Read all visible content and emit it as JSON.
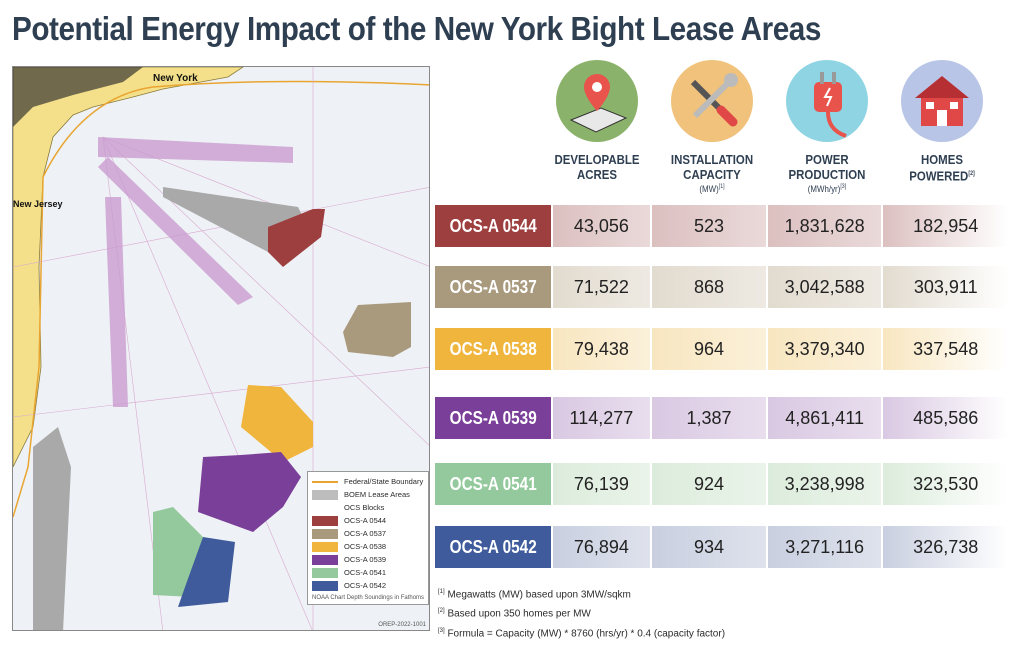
{
  "title": "Potential Energy Impact of the New York Bight Lease Areas",
  "map": {
    "labels": {
      "new_york": "New York",
      "new_jersey": "New Jersey"
    },
    "legend": {
      "boundary": "Federal/State Boundary",
      "boem": "BOEM Lease Areas",
      "blocks_title": "OCS Blocks",
      "items": [
        {
          "label": "OCS-A 0544",
          "color": "#9e3f3f"
        },
        {
          "label": "OCS-A 0537",
          "color": "#a99a7e"
        },
        {
          "label": "OCS-A 0538",
          "color": "#f0b53c"
        },
        {
          "label": "OCS-A 0539",
          "color": "#7a3f98"
        },
        {
          "label": "OCS-A 0541",
          "color": "#93c99c"
        },
        {
          "label": "OCS-A 0542",
          "color": "#3f5b9c"
        }
      ],
      "note": "NOAA Chart Depth Soundings in Fathoms",
      "code": "OREP-2022-1001"
    }
  },
  "headers": [
    {
      "title": "DEVELOPABLE ACRES",
      "sub": "",
      "icon": "map-pin-icon"
    },
    {
      "title": "INSTALLATION CAPACITY",
      "sub": "(MW)",
      "sup": "[1]",
      "icon": "tools-icon"
    },
    {
      "title": "POWER PRODUCTION",
      "sub": "(MWh/yr)",
      "sup": "[3]",
      "icon": "power-plug-icon"
    },
    {
      "title": "HOMES POWERED",
      "sub": "",
      "sup": "[2]",
      "icon": "house-icon"
    }
  ],
  "rows": [
    {
      "name": "OCS-A 0544",
      "acres": "43,056",
      "capacity": "523",
      "production": "1,831,628",
      "homes": "182,954",
      "color": "#9e3f3f",
      "tint": "#dcc0c0"
    },
    {
      "name": "OCS-A 0537",
      "acres": "71,522",
      "capacity": "868",
      "production": "3,042,588",
      "homes": "303,911",
      "color": "#a99a7e",
      "tint": "#e2dbcf"
    },
    {
      "name": "OCS-A 0538",
      "acres": "79,438",
      "capacity": "964",
      "production": "3,379,340",
      "homes": "337,548",
      "color": "#f0b53c",
      "tint": "#f8e6c0"
    },
    {
      "name": "OCS-A 0539",
      "acres": "114,277",
      "capacity": "1,387",
      "production": "4,861,411",
      "homes": "485,586",
      "color": "#7a3f98",
      "tint": "#d9c8e2"
    },
    {
      "name": "OCS-A 0541",
      "acres": "76,139",
      "capacity": "924",
      "production": "3,238,998",
      "homes": "323,530",
      "color": "#93c99c",
      "tint": "#dcecdc"
    },
    {
      "name": "OCS-A 0542",
      "acres": "76,894",
      "capacity": "934",
      "production": "3,271,116",
      "homes": "326,738",
      "color": "#3f5b9c",
      "tint": "#c9cfe0"
    }
  ],
  "notes": [
    {
      "mark": "[1]",
      "text": "Megawatts (MW) based upon 3MW/sqkm"
    },
    {
      "mark": "[2]",
      "text": "Based upon 350 homes per MW"
    },
    {
      "mark": "[3]",
      "text": "Formula = Capacity (MW) * 8760 (hrs/yr) * 0.4 (capacity factor)"
    }
  ]
}
